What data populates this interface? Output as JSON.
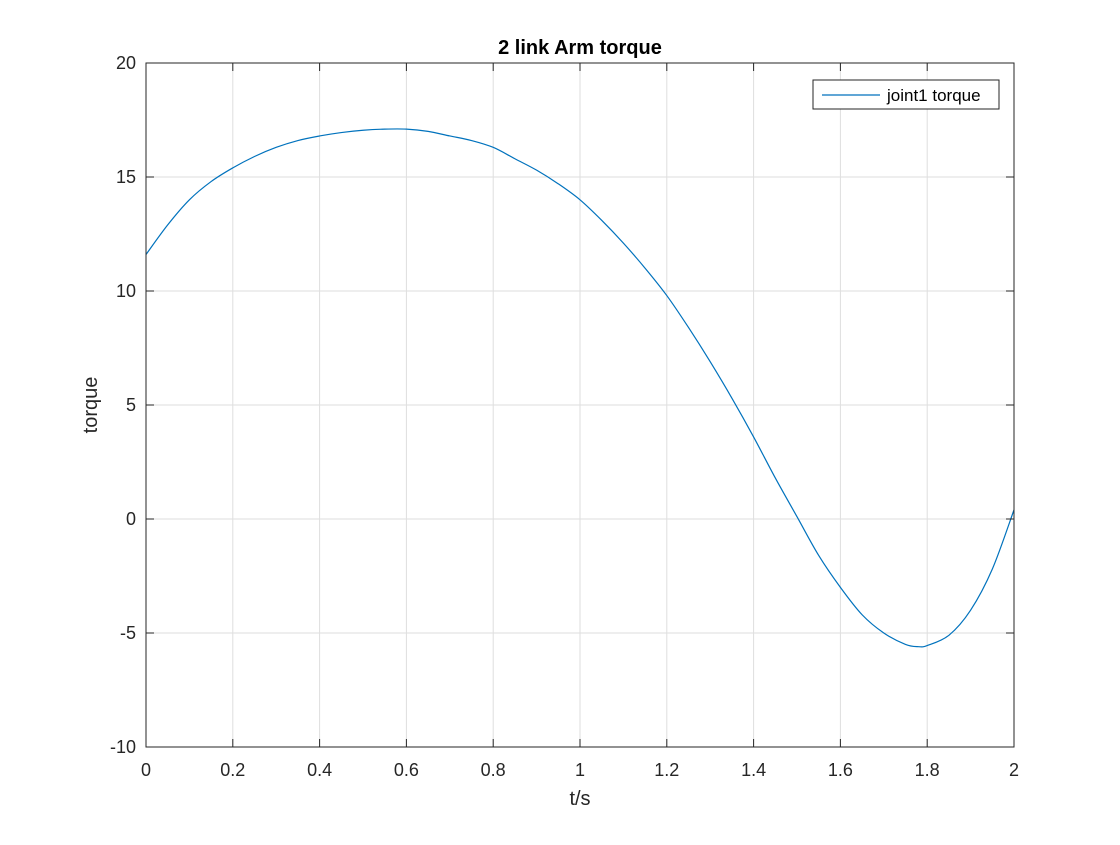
{
  "chart_data": {
    "type": "line",
    "title": "2 link Arm torque",
    "xlabel": "t/s",
    "ylabel": "torque",
    "xlim": [
      0,
      2
    ],
    "ylim": [
      -10,
      20
    ],
    "xticks": [
      0,
      0.2,
      0.4,
      0.6,
      0.8,
      1,
      1.2,
      1.4,
      1.6,
      1.8,
      2
    ],
    "xtick_labels": [
      "0",
      "0.2",
      "0.4",
      "0.6",
      "0.8",
      "1",
      "1.2",
      "1.4",
      "1.6",
      "1.8",
      "2"
    ],
    "yticks": [
      -10,
      -5,
      0,
      5,
      10,
      15,
      20
    ],
    "ytick_labels": [
      "-10",
      "-5",
      "0",
      "5",
      "10",
      "15",
      "20"
    ],
    "grid": true,
    "legend_position": "top-right",
    "series": [
      {
        "name": "joint1 torque",
        "color": "#0072BD",
        "x": [
          0,
          0.05,
          0.1,
          0.15,
          0.2,
          0.25,
          0.3,
          0.35,
          0.4,
          0.45,
          0.5,
          0.55,
          0.6,
          0.65,
          0.7,
          0.75,
          0.8,
          0.85,
          0.9,
          0.95,
          1.0,
          1.05,
          1.1,
          1.15,
          1.2,
          1.25,
          1.3,
          1.35,
          1.4,
          1.45,
          1.5,
          1.55,
          1.6,
          1.65,
          1.7,
          1.75,
          1.78,
          1.8,
          1.85,
          1.9,
          1.95,
          2.0
        ],
        "y": [
          11.6,
          12.9,
          14.0,
          14.8,
          15.4,
          15.9,
          16.3,
          16.6,
          16.8,
          16.95,
          17.05,
          17.1,
          17.1,
          17.0,
          16.8,
          16.6,
          16.3,
          15.8,
          15.3,
          14.7,
          14.0,
          13.1,
          12.1,
          11.0,
          9.8,
          8.4,
          6.9,
          5.3,
          3.6,
          1.8,
          0.1,
          -1.6,
          -3.0,
          -4.2,
          -5.0,
          -5.5,
          -5.6,
          -5.55,
          -5.1,
          -4.0,
          -2.2,
          0.4
        ]
      }
    ]
  }
}
